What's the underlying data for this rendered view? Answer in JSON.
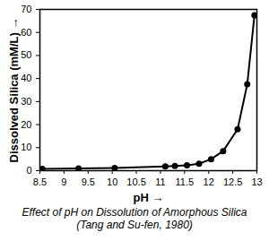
{
  "chart_data": {
    "type": "line",
    "caption": "Effect of pH on Dissolution of Amorphous Silica (Tang and Su-fen, 1980)",
    "x_label": "pH",
    "y_label": "Dissolved Silica (mM/L)",
    "x": [
      8.55,
      9.3,
      10.05,
      11.1,
      11.3,
      11.55,
      11.8,
      12.05,
      12.3,
      12.6,
      12.8,
      12.95
    ],
    "values": [
      0.8,
      1.0,
      1.2,
      1.8,
      2.0,
      2.3,
      3.0,
      5.0,
      8.5,
      18,
      37.5,
      67.5
    ],
    "color": "#000000",
    "marker": "circle",
    "line_style": "solid",
    "xlim": [
      8.5,
      13
    ],
    "xticks": [
      8.5,
      9,
      9.5,
      10,
      10.5,
      11,
      11.5,
      12,
      12.5,
      13
    ],
    "ylim": [
      0,
      70
    ],
    "yticks": [
      0,
      10,
      20,
      30,
      40,
      50,
      60,
      70
    ],
    "grid": false
  }
}
